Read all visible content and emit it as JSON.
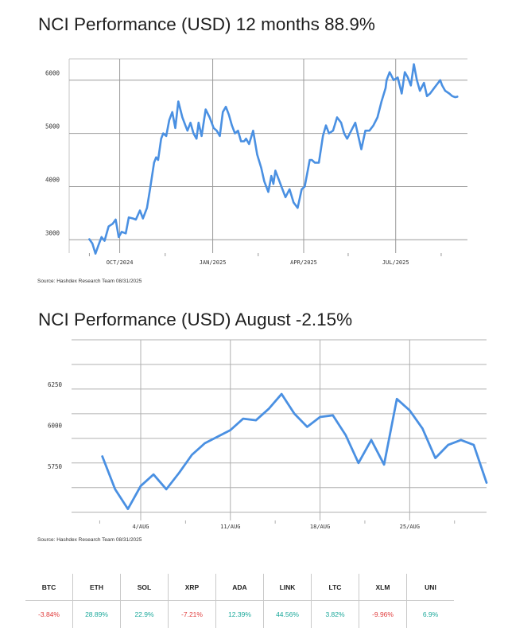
{
  "chart1": {
    "title": "NCI Performance (USD) 12 months 88.9%",
    "source": "Source: Hashdex Research Team 08/31/2025"
  },
  "chart2": {
    "title": "NCI Performance (USD) August -2.15%",
    "source": "Source: Hashdex Research Team 08/31/2025"
  },
  "colors": {
    "line": "#4a90e2",
    "grid": "#9a9a9a",
    "negative": "#e03b3b",
    "positive": "#1aa89a"
  },
  "chart_data": [
    {
      "type": "line",
      "title": "NCI Performance (USD) 12 months 88.9%",
      "xlabel": "",
      "ylabel": "",
      "x_tick_labels": [
        "OCT/2024",
        "JAN/2025",
        "APR/2025",
        "JUL/2025"
      ],
      "y_ticks": [
        3000,
        4000,
        5000,
        6000
      ],
      "ylim": [
        2750,
        6400
      ],
      "grid": true,
      "series": [
        {
          "x": [
            "2024-09-01",
            "2024-09-04",
            "2024-09-07",
            "2024-09-10",
            "2024-09-13",
            "2024-09-16",
            "2024-09-20",
            "2024-09-24",
            "2024-09-27",
            "2024-09-30",
            "2024-10-03",
            "2024-10-07",
            "2024-10-10",
            "2024-10-14",
            "2024-10-17",
            "2024-10-21",
            "2024-10-24",
            "2024-10-28",
            "2024-10-31",
            "2024-11-04",
            "2024-11-06",
            "2024-11-08",
            "2024-11-11",
            "2024-11-13",
            "2024-11-16",
            "2024-11-19",
            "2024-11-22",
            "2024-11-25",
            "2024-11-28",
            "2024-12-02",
            "2024-12-05",
            "2024-12-07",
            "2024-12-10",
            "2024-12-13",
            "2024-12-16",
            "2024-12-18",
            "2024-12-21",
            "2024-12-25",
            "2024-12-29",
            "2025-01-02",
            "2025-01-05",
            "2025-01-08",
            "2025-01-11",
            "2025-01-14",
            "2025-01-17",
            "2025-01-20",
            "2025-01-23",
            "2025-01-26",
            "2025-01-29",
            "2025-02-01",
            "2025-02-03",
            "2025-02-06",
            "2025-02-10",
            "2025-02-14",
            "2025-02-18",
            "2025-02-21",
            "2025-02-25",
            "2025-02-28",
            "2025-03-02",
            "2025-03-04",
            "2025-03-07",
            "2025-03-10",
            "2025-03-14",
            "2025-03-18",
            "2025-03-22",
            "2025-03-26",
            "2025-03-30",
            "2025-04-02",
            "2025-04-05",
            "2025-04-07",
            "2025-04-09",
            "2025-04-12",
            "2025-04-16",
            "2025-04-20",
            "2025-04-23",
            "2025-04-26",
            "2025-04-30",
            "2025-05-04",
            "2025-05-08",
            "2025-05-11",
            "2025-05-14",
            "2025-05-18",
            "2025-05-22",
            "2025-05-25",
            "2025-05-28",
            "2025-06-01",
            "2025-06-05",
            "2025-06-09",
            "2025-06-13",
            "2025-06-17",
            "2025-06-21",
            "2025-06-22",
            "2025-06-25",
            "2025-06-29",
            "2025-07-03",
            "2025-07-07",
            "2025-07-10",
            "2025-07-13",
            "2025-07-16",
            "2025-07-19",
            "2025-07-22",
            "2025-07-25",
            "2025-07-29",
            "2025-08-01",
            "2025-08-04",
            "2025-08-08",
            "2025-08-12",
            "2025-08-14",
            "2025-08-16",
            "2025-08-19",
            "2025-08-23",
            "2025-08-26",
            "2025-08-29",
            "2025-08-31"
          ],
          "y": [
            3010,
            2930,
            2740,
            2900,
            3050,
            2980,
            3250,
            3300,
            3380,
            3050,
            3150,
            3120,
            3420,
            3400,
            3380,
            3550,
            3400,
            3600,
            3950,
            4450,
            4550,
            4500,
            4900,
            5000,
            4950,
            5250,
            5400,
            5100,
            5600,
            5300,
            5150,
            5050,
            5200,
            5000,
            4900,
            5200,
            4950,
            5450,
            5300,
            5100,
            5050,
            4950,
            5400,
            5500,
            5350,
            5150,
            5000,
            5050,
            4850,
            4850,
            4900,
            4800,
            5050,
            4600,
            4350,
            4100,
            3900,
            4200,
            4050,
            4300,
            4150,
            4000,
            3800,
            3950,
            3700,
            3600,
            3950,
            4000,
            4300,
            4500,
            4500,
            4450,
            4450,
            4950,
            5150,
            5000,
            5050,
            5300,
            5200,
            5000,
            4900,
            5050,
            5200,
            4950,
            4700,
            5050,
            5050,
            5150,
            5300,
            5600,
            5850,
            6000,
            6150,
            6000,
            6050,
            5750,
            6150,
            6050,
            5900,
            6300,
            6000,
            5800,
            5950,
            5700,
            5750,
            5850,
            5950,
            6000,
            5900,
            5800,
            5750,
            5700,
            5680,
            5690
          ]
        }
      ]
    },
    {
      "type": "line",
      "title": "NCI Performance (USD) August -2.15%",
      "xlabel": "",
      "ylabel": "",
      "x_tick_labels": [
        "4/AUG",
        "11/AUG",
        "18/AUG",
        "25/AUG"
      ],
      "y_ticks": [
        5750,
        6000,
        6250
      ],
      "ylim": [
        5450,
        6550
      ],
      "grid": true,
      "series": [
        {
          "x": [
            1,
            2,
            3,
            4,
            5,
            6,
            7,
            8,
            9,
            10,
            11,
            12,
            13,
            14,
            15,
            16,
            17,
            18,
            19,
            20,
            21,
            22,
            23,
            24,
            25,
            26,
            27,
            28,
            29,
            30,
            31
          ],
          "y": [
            5840,
            5640,
            5520,
            5660,
            5730,
            5640,
            5740,
            5850,
            5920,
            5960,
            6000,
            6070,
            6060,
            6130,
            6220,
            6100,
            6020,
            6080,
            6090,
            5970,
            5800,
            5940,
            5790,
            6190,
            6120,
            6010,
            5830,
            5910,
            5940,
            5910,
            5680
          ]
        }
      ]
    }
  ],
  "table": {
    "headers": [
      "BTC",
      "ETH",
      "SOL",
      "XRP",
      "ADA",
      "LINK",
      "LTC",
      "XLM",
      "UNI"
    ],
    "values": [
      "-3.84%",
      "28.89%",
      "22.9%",
      "-7.21%",
      "12.39%",
      "44.56%",
      "3.82%",
      "-9.96%",
      "6.9%"
    ],
    "signs": [
      "negative",
      "positive",
      "positive",
      "negative",
      "positive",
      "positive",
      "positive",
      "negative",
      "positive"
    ]
  }
}
